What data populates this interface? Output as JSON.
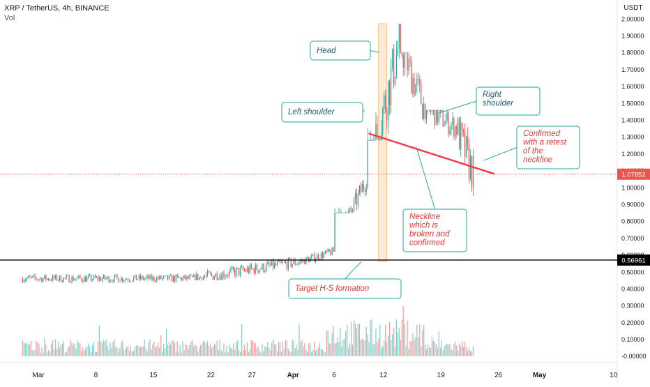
{
  "header": {
    "title": "XRP / TetherUS, 4h, BINANCE",
    "vol_label": "Vol"
  },
  "chart_data": {
    "type": "candlestick",
    "title": "XRP / TetherUS, 4h, BINANCE",
    "currency": "USDT",
    "colors": {
      "up": "#26a69a",
      "down": "#ef5350",
      "neckline": "#f23645",
      "support": "#000000",
      "annotation_border": "#26a69a",
      "annotation_fill": "#ffffff",
      "annotation_text": "#1e5f74",
      "annotation_text_red": "#e53935",
      "highlight": "#f7c28a",
      "price_badge": "#ef5350",
      "level_badge": "#000000"
    },
    "ylim": [
      -0.03,
      2.02
    ],
    "y_ticks": [
      "2.00000",
      "1.90000",
      "1.80000",
      "1.70000",
      "1.60000",
      "1.50000",
      "1.40000",
      "1.30000",
      "1.20000",
      "1.10000",
      "1.00000",
      "0.90000",
      "0.80000",
      "0.70000",
      "0.60000",
      "0.50000",
      "0.40000",
      "0.30000",
      "0.20000",
      "0.10000",
      "-0.00000"
    ],
    "x_ticks": [
      "Mar",
      "8",
      "15",
      "22",
      "27",
      "Apr",
      "6",
      "12",
      "19",
      "26",
      "May",
      "10"
    ],
    "last_price": "1.07852",
    "horizontal_level": "0.56961",
    "price_segments": [
      {
        "from": "Feb 27",
        "to": "Mar 20",
        "low": 0.4,
        "high": 0.5,
        "close": 0.46
      },
      {
        "from": "Mar 20",
        "to": "Apr 2",
        "low": 0.45,
        "high": 0.6,
        "close": 0.56
      },
      {
        "from": "Apr 2",
        "to": "Apr 6",
        "low": 0.54,
        "high": 0.65,
        "close": 0.62
      },
      {
        "from": "Apr 6",
        "to": "Apr 10",
        "low": 0.85,
        "high": 1.12,
        "close": 1.05
      },
      {
        "from": "Apr 10",
        "to": "Apr 14",
        "low": 1.28,
        "high": 1.97,
        "close": 1.85
      },
      {
        "from": "Apr 14",
        "to": "Apr 17",
        "low": 1.3,
        "high": 1.8,
        "close": 1.48
      },
      {
        "from": "Apr 17",
        "to": "Apr 21",
        "low": 1.15,
        "high": 1.46,
        "close": 1.35
      },
      {
        "from": "Apr 21",
        "to": "Apr 23",
        "low": 0.88,
        "high": 1.42,
        "close": 1.08
      }
    ],
    "volume_peak_approx": 0.3,
    "annotations": [
      {
        "label": "Head"
      },
      {
        "label": "Left shoulder"
      },
      {
        "label": "Right shoulder"
      },
      {
        "label": "Confirmed with a retest of the neckline"
      },
      {
        "label": "Neckline which is broken and confirmed"
      },
      {
        "label": "Target H-S formation"
      }
    ]
  }
}
